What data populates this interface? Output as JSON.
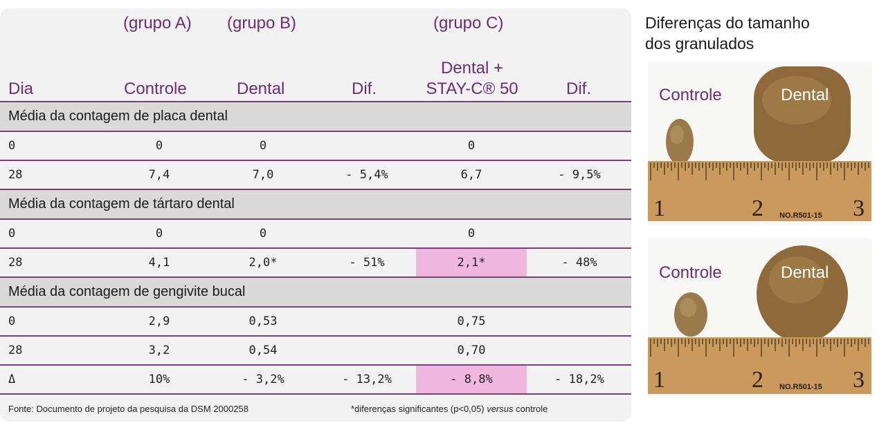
{
  "table": {
    "groups": {
      "a": "(grupo A)",
      "b": "(grupo B)",
      "c": "(grupo C)"
    },
    "columns": {
      "day": "Dia",
      "control": "Controle",
      "dental": "Dental",
      "dif1": "Dif.",
      "staycLine1": "Dental +",
      "staycLine2": "STAY-C® 50",
      "dif2": "Dif."
    },
    "sections": [
      {
        "title": "Média da contagem de placa dental",
        "rows": [
          {
            "day": "0",
            "control": "0",
            "dental": "0",
            "dif1": "",
            "stayc": "0",
            "dif2": ""
          },
          {
            "day": "28",
            "control": "7,4",
            "dental": "7,0",
            "dif1": "- 5,4%",
            "stayc": "6,7",
            "dif2": "- 9,5%"
          }
        ]
      },
      {
        "title": "Média da contagem de tártaro dental",
        "rows": [
          {
            "day": "0",
            "control": "0",
            "dental": "0",
            "dif1": "",
            "stayc": "0",
            "dif2": ""
          },
          {
            "day": "28",
            "control": "4,1",
            "dental": "2,0*",
            "dif1": "- 51%",
            "stayc": "2,1*",
            "dif2": "- 48%"
          }
        ]
      },
      {
        "title": "Média da contagem de gengivite bucal",
        "rows": [
          {
            "day": "0",
            "control": "2,9",
            "dental": "0,53",
            "dif1": "",
            "stayc": "0,75",
            "dif2": ""
          },
          {
            "day": "28",
            "control": "3,2",
            "dental": "0,54",
            "dif1": "",
            "stayc": "0,70",
            "dif2": ""
          },
          {
            "day": "Δ",
            "control": "10%",
            "dental": "- 3,2%",
            "dif1": "- 13,2%",
            "stayc": "- 8,8%",
            "dif2": "- 18,2%"
          }
        ]
      }
    ],
    "footnote_source": "Fonte: Documento de projeto da pesquisa da DSM 2000258",
    "footnote_sig_pre": "*diferenças significantes (p<0,05) ",
    "footnote_sig_italic": "versus",
    "footnote_sig_post": " controle"
  },
  "side": {
    "title_line1": "Diferenças do tamanho",
    "title_line2": "dos granulados",
    "photo1": {
      "control": "Controle",
      "dental": "Dental",
      "ruler_id": "NO.R501-15",
      "marks": [
        "1",
        "2",
        "3"
      ]
    },
    "photo2": {
      "control": "Controle",
      "dental": "Dental",
      "ruler_id": "NO.R501-15",
      "marks": [
        "1",
        "2",
        "3"
      ]
    }
  },
  "colors": {
    "accent": "#6b2d73",
    "highlight": "#f0b8de",
    "band": "#d9d9d9",
    "panel": "#f2f2f2"
  }
}
